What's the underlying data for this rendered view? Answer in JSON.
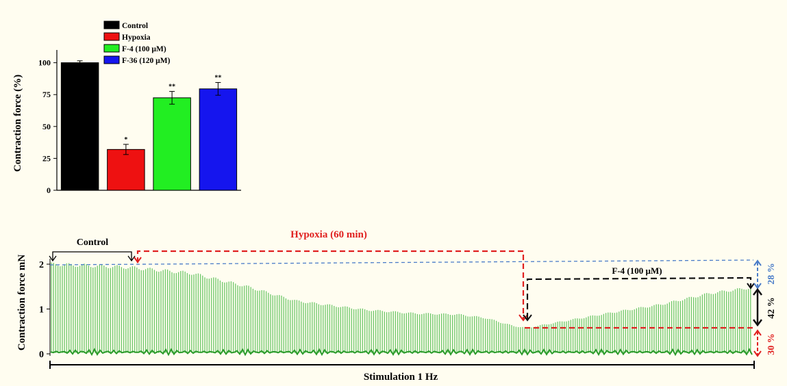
{
  "colors": {
    "background": "#fffdf0",
    "control": "#000000",
    "hypoxia": "#ee1111",
    "f4": "#22ee22",
    "f36": "#1515ee",
    "trace": "#3cb43c",
    "hypoxia_annot": "#e02020",
    "f4_annot": "#111111",
    "ref_line": "#4a7cc8"
  },
  "chart_data": [
    {
      "type": "bar",
      "ylabel": "Contraction force (%)",
      "ylim": [
        0,
        110
      ],
      "yticks": [
        0,
        25,
        50,
        75,
        100
      ],
      "legend_placement": "top-left",
      "categories": [
        "Control",
        "Hypoxia",
        "F-4 (100 µM)",
        "F-36 (120 µM)"
      ],
      "series": [
        {
          "values": [
            100,
            32,
            72.5,
            79.5
          ],
          "errors": [
            1.5,
            4,
            5,
            5
          ],
          "significance": [
            "",
            "*",
            "**",
            "**"
          ],
          "colors": [
            "#000000",
            "#ee1111",
            "#22ee22",
            "#1515ee"
          ]
        }
      ]
    },
    {
      "type": "line",
      "ylabel": "Contraction force mN",
      "xlabel": "Stimulation 1 Hz",
      "ylim": [
        0,
        2
      ],
      "yticks": [
        0,
        1,
        2
      ],
      "envelope_profile": {
        "x": [
          0,
          0.05,
          0.11,
          0.2,
          0.28,
          0.35,
          0.45,
          0.52,
          0.58,
          0.62,
          0.66,
          0.68,
          0.7,
          0.75,
          0.8,
          0.87,
          0.94,
          1
        ],
        "y": [
          2.0,
          1.97,
          1.93,
          1.8,
          1.5,
          1.18,
          0.98,
          0.9,
          0.88,
          0.8,
          0.62,
          0.58,
          0.64,
          0.78,
          0.92,
          1.1,
          1.35,
          1.48
        ]
      },
      "annotations": {
        "control": "Control",
        "hypoxia": "Hypoxia  (60 min)",
        "f4": "F-4 (100 µM)",
        "pct_28": "28 %",
        "pct_42": "42 %",
        "pct_30": "30 %"
      }
    }
  ]
}
